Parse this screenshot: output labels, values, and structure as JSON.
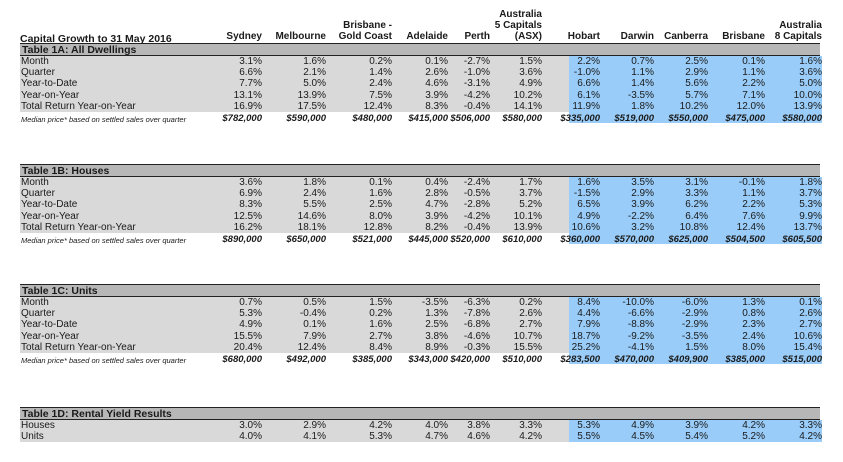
{
  "title": "Capital Growth to 31 May 2016",
  "columns": [
    {
      "lines": [
        "Sydney"
      ]
    },
    {
      "lines": [
        "Melbourne"
      ]
    },
    {
      "lines": [
        "Brisbane -",
        "Gold Coast"
      ]
    },
    {
      "lines": [
        "Adelaide"
      ]
    },
    {
      "lines": [
        "Perth"
      ]
    },
    {
      "lines": [
        "Australia",
        "5 Capitals",
        "(ASX)"
      ]
    },
    {
      "lines": [
        "Hobart"
      ]
    },
    {
      "lines": [
        "Darwin"
      ]
    },
    {
      "lines": [
        "Canberra"
      ]
    },
    {
      "lines": [
        "Brisbane"
      ]
    },
    {
      "lines": [
        "Australia",
        "8 Capitals"
      ]
    }
  ],
  "tables": [
    {
      "title": "Table 1A: All Dwellings",
      "rows": [
        {
          "label": "Month",
          "values": [
            "3.1%",
            "1.6%",
            "0.2%",
            "0.1%",
            "-2.7%",
            "1.5%",
            "2.2%",
            "0.7%",
            "2.5%",
            "0.1%",
            "1.6%"
          ]
        },
        {
          "label": "Quarter",
          "values": [
            "6.6%",
            "2.1%",
            "1.4%",
            "2.6%",
            "-1.0%",
            "3.6%",
            "-1.0%",
            "1.1%",
            "2.9%",
            "1.1%",
            "3.6%"
          ]
        },
        {
          "label": "Year-to-Date",
          "values": [
            "7.7%",
            "5.0%",
            "2.4%",
            "4.6%",
            "-3.1%",
            "4.9%",
            "6.6%",
            "1.4%",
            "5.6%",
            "2.2%",
            "5.0%"
          ]
        },
        {
          "label": "Year-on-Year",
          "values": [
            "13.1%",
            "13.9%",
            "7.5%",
            "3.9%",
            "-4.2%",
            "10.2%",
            "6.1%",
            "-3.5%",
            "5.7%",
            "7.1%",
            "10.0%"
          ]
        },
        {
          "label": "Total Return Year-on-Year",
          "values": [
            "16.9%",
            "17.5%",
            "12.4%",
            "8.3%",
            "-0.4%",
            "14.1%",
            "11.9%",
            "1.8%",
            "10.2%",
            "12.0%",
            "13.9%"
          ]
        }
      ],
      "median_label": "Median price* based on settled sales over quarter",
      "median_values": [
        "$782,000",
        "$590,000",
        "$480,000",
        "$415,000",
        "$506,000",
        "$580,000",
        "$335,000",
        "$519,000",
        "$550,000",
        "$475,000",
        "$580,000"
      ]
    },
    {
      "title": "Table 1B: Houses",
      "rows": [
        {
          "label": "Month",
          "values": [
            "3.6%",
            "1.8%",
            "0.1%",
            "0.4%",
            "-2.4%",
            "1.7%",
            "1.6%",
            "3.5%",
            "3.1%",
            "-0.1%",
            "1.8%"
          ]
        },
        {
          "label": "Quarter",
          "values": [
            "6.9%",
            "2.4%",
            "1.6%",
            "2.8%",
            "-0.5%",
            "3.7%",
            "-1.5%",
            "2.9%",
            "3.3%",
            "1.1%",
            "3.7%"
          ]
        },
        {
          "label": "Year-to-Date",
          "values": [
            "8.3%",
            "5.5%",
            "2.5%",
            "4.7%",
            "-2.8%",
            "5.2%",
            "6.5%",
            "3.9%",
            "6.2%",
            "2.2%",
            "5.3%"
          ]
        },
        {
          "label": "Year-on-Year",
          "values": [
            "12.5%",
            "14.6%",
            "8.0%",
            "3.9%",
            "-4.2%",
            "10.1%",
            "4.9%",
            "-2.2%",
            "6.4%",
            "7.6%",
            "9.9%"
          ]
        },
        {
          "label": "Total Return Year-on-Year",
          "values": [
            "16.2%",
            "18.1%",
            "12.8%",
            "8.2%",
            "-0.4%",
            "13.9%",
            "10.6%",
            "3.2%",
            "10.8%",
            "12.4%",
            "13.7%"
          ]
        }
      ],
      "median_label": "Median price* based on settled sales over quarter",
      "median_values": [
        "$890,000",
        "$650,000",
        "$521,000",
        "$445,000",
        "$520,000",
        "$610,000",
        "$360,000",
        "$570,000",
        "$625,000",
        "$504,500",
        "$605,500"
      ]
    },
    {
      "title": "Table 1C: Units",
      "rows": [
        {
          "label": "Month",
          "values": [
            "0.7%",
            "0.5%",
            "1.5%",
            "-3.5%",
            "-6.3%",
            "0.2%",
            "8.4%",
            "-10.0%",
            "-6.0%",
            "1.3%",
            "0.1%"
          ]
        },
        {
          "label": "Quarter",
          "values": [
            "5.3%",
            "-0.4%",
            "0.2%",
            "1.3%",
            "-7.8%",
            "2.6%",
            "4.4%",
            "-6.6%",
            "-2.9%",
            "0.8%",
            "2.6%"
          ]
        },
        {
          "label": "Year-to-Date",
          "values": [
            "4.9%",
            "0.1%",
            "1.6%",
            "2.5%",
            "-6.8%",
            "2.7%",
            "7.9%",
            "-8.8%",
            "-2.9%",
            "2.3%",
            "2.7%"
          ]
        },
        {
          "label": "Year-on-Year",
          "values": [
            "15.5%",
            "7.9%",
            "2.7%",
            "3.8%",
            "-4.6%",
            "10.7%",
            "18.7%",
            "-9.2%",
            "-3.5%",
            "2.4%",
            "10.6%"
          ]
        },
        {
          "label": "Total Return Year-on-Year",
          "values": [
            "20.4%",
            "12.4%",
            "8.4%",
            "8.9%",
            "-0.3%",
            "15.5%",
            "25.2%",
            "-4.1%",
            "1.5%",
            "8.0%",
            "15.4%"
          ]
        }
      ],
      "median_label": "Median price* based on settled sales over quarter",
      "median_values": [
        "$680,000",
        "$492,000",
        "$385,000",
        "$343,000",
        "$420,000",
        "$510,000",
        "$283,500",
        "$470,000",
        "$409,900",
        "$385,000",
        "$515,000"
      ]
    },
    {
      "title": "Table 1D: Rental Yield Results",
      "rows": [
        {
          "label": "Houses",
          "values": [
            "3.0%",
            "2.9%",
            "4.2%",
            "4.0%",
            "3.8%",
            "3.3%",
            "5.3%",
            "4.9%",
            "3.9%",
            "4.2%",
            "3.3%"
          ]
        },
        {
          "label": "Units",
          "values": [
            "4.0%",
            "4.1%",
            "5.3%",
            "4.7%",
            "4.6%",
            "4.2%",
            "5.5%",
            "4.5%",
            "5.4%",
            "5.2%",
            "4.2%"
          ]
        }
      ]
    }
  ],
  "colors": {
    "header_gray": "#b7b7b7",
    "band_gray": "#d9d9d9",
    "highlight_blue": "#99ccf8"
  }
}
